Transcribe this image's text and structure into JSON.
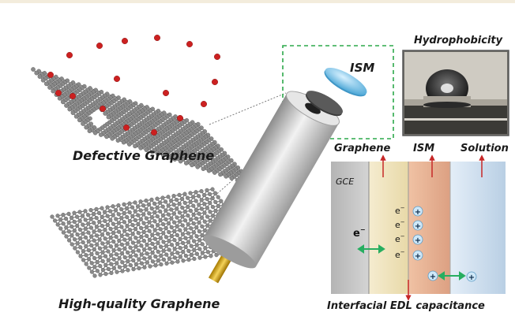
{
  "labels": {
    "defective": "Defective Graphene",
    "high_quality": "High-quality Graphene",
    "hydrophobicity": "Hydrophobicity",
    "ism_electrode": "ISM",
    "graphene_layer": "Graphene",
    "ism_layer": "ISM",
    "solution_layer": "Solution",
    "gce": "GCE",
    "edl": "Interfacial EDL capacitance"
  },
  "charges": {
    "electron": "e",
    "electron_sup": "−",
    "cation": "+"
  },
  "colors": {
    "arrow_red": "#c62828",
    "arrow_green": "#27ae60",
    "dashed_box": "#2ca84a",
    "gce_layer": "#c9c9c9",
    "graphene_layer": "#f1e6c4",
    "ism_layer": "#e6b08e",
    "solution_layer": "#d7e6f4",
    "membrane_cap": "#7fc6ea",
    "oxygen_atom": "#cc2020",
    "carbon_atom": "#8a8a8a"
  }
}
